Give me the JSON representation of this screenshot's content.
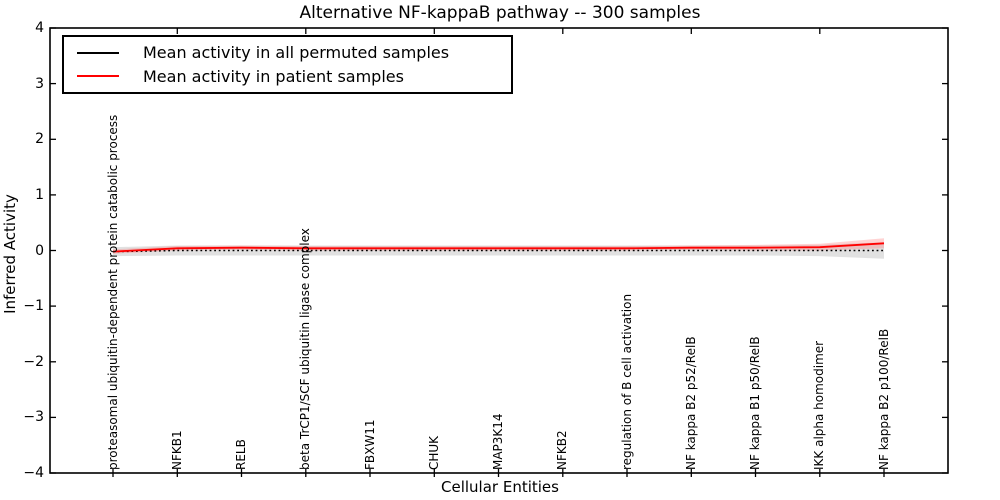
{
  "chart_data": {
    "type": "line",
    "title": "Alternative NF-kappaB pathway -- 300 samples",
    "xlabel": "Cellular Entities",
    "ylabel": "Inferred Activity",
    "ylim": [
      -4,
      4
    ],
    "ytick_labels": [
      "4",
      "3",
      "2",
      "1",
      "0",
      "−1",
      "−2",
      "−3",
      "−4"
    ],
    "ytick_values": [
      4,
      3,
      2,
      1,
      0,
      -1,
      -2,
      -3,
      -4
    ],
    "grid": false,
    "legend_position": "upper left",
    "categories": [
      "proteasomal ubiquitin-dependent protein catabolic process",
      "NFKB1",
      "RELB",
      "beta TrCP1/SCF ubiquitin ligase complex",
      "FBXW11",
      "CHUK",
      "MAP3K14",
      "NFKB2",
      "regulation of B cell activation",
      "NF kappa B2 p52/RelB",
      "NF kappa B1 p50/RelB",
      "IKK alpha homodimer",
      "NF kappa B2 p100/RelB"
    ],
    "series": [
      {
        "name": "Mean activity in all permuted samples",
        "color": "#000000",
        "style": "dotted",
        "values": [
          -0.02,
          0.0,
          0.0,
          0.0,
          0.0,
          0.0,
          0.0,
          0.0,
          0.0,
          0.0,
          0.0,
          0.0,
          0.0
        ],
        "band_halfwidth": [
          0.08,
          0.09,
          0.09,
          0.09,
          0.09,
          0.09,
          0.09,
          0.09,
          0.09,
          0.09,
          0.09,
          0.1,
          0.15
        ],
        "band_color": "#c8c8c8"
      },
      {
        "name": "Mean activity in patient samples",
        "color": "#ff0000",
        "style": "solid",
        "values": [
          -0.02,
          0.04,
          0.05,
          0.04,
          0.04,
          0.04,
          0.04,
          0.04,
          0.04,
          0.05,
          0.05,
          0.06,
          0.13
        ],
        "band_halfwidth": [
          0.04,
          0.04,
          0.04,
          0.04,
          0.04,
          0.04,
          0.04,
          0.04,
          0.04,
          0.04,
          0.05,
          0.06,
          0.09
        ],
        "band_color": "#ff8080"
      }
    ]
  }
}
